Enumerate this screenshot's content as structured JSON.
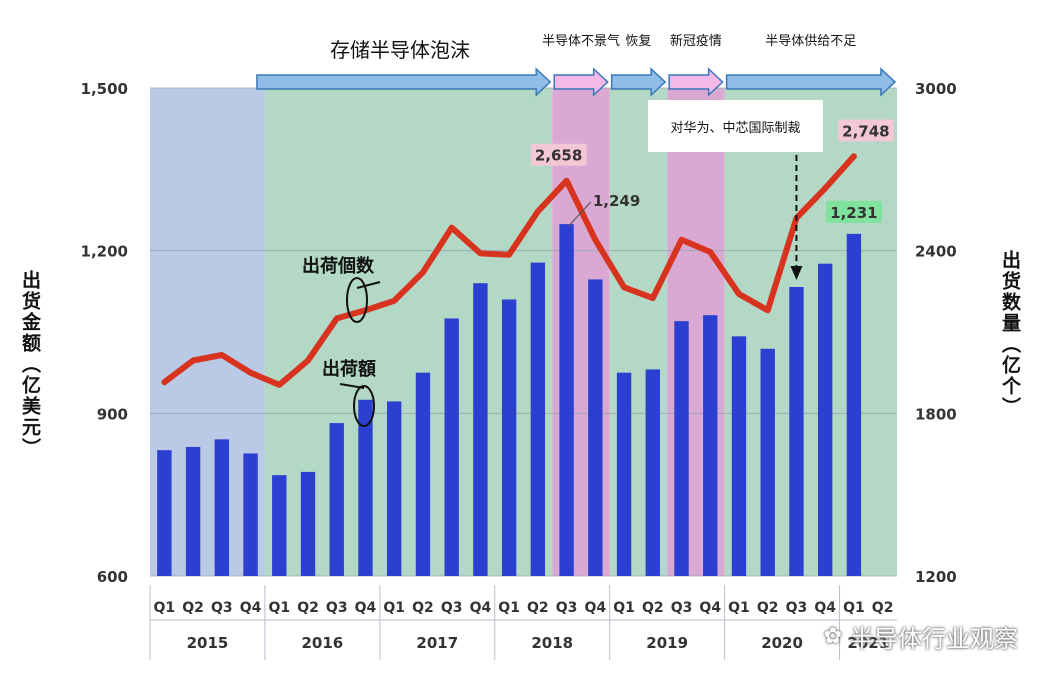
{
  "chart_data": {
    "type": "bar",
    "title": "存储半导体泡沫",
    "ylabel_left": "出货金额（亿美元）",
    "ylabel_right": "出货数量（亿个）",
    "left_axis": {
      "ylim": [
        600,
        1500
      ],
      "ticks": [
        "600",
        "900",
        "1,200",
        "1,500"
      ],
      "tick_values": [
        600,
        900,
        1200,
        1500
      ]
    },
    "right_axis": {
      "ylim": [
        1200,
        3000
      ],
      "ticks": [
        "1200",
        "1800",
        "2400",
        "3000"
      ],
      "tick_values": [
        1200,
        1800,
        2400,
        3000
      ]
    },
    "quarters": [
      "Q1",
      "Q2",
      "Q3",
      "Q4",
      "Q1",
      "Q2",
      "Q3",
      "Q4",
      "Q1",
      "Q2",
      "Q3",
      "Q4",
      "Q1",
      "Q2",
      "Q3",
      "Q4",
      "Q1",
      "Q2",
      "Q3",
      "Q4",
      "Q1",
      "Q2",
      "Q3",
      "Q4",
      "Q1",
      "Q2"
    ],
    "years": [
      {
        "label": "2015",
        "span": 4
      },
      {
        "label": "2016",
        "span": 4
      },
      {
        "label": "2017",
        "span": 4
      },
      {
        "label": "2018",
        "span": 4
      },
      {
        "label": "2019",
        "span": 4
      },
      {
        "label": "2020",
        "span": 4
      },
      {
        "label": "2021",
        "span": 2
      }
    ],
    "series": [
      {
        "name": "出荷額",
        "type": "bar",
        "axis": "left",
        "color": "#2b3fd0",
        "values": [
          832,
          838,
          852,
          826,
          786,
          792,
          882,
          925,
          922,
          975,
          1075,
          1140,
          1110,
          1178,
          1249,
          1147,
          975,
          981,
          1070,
          1081,
          1042,
          1019,
          1133,
          1176,
          1231,
          null
        ]
      },
      {
        "name": "出荷個数",
        "type": "line",
        "axis": "right",
        "color": "#d8331e",
        "values": [
          1915,
          1995,
          2015,
          1950,
          1905,
          1995,
          2150,
          2180,
          2215,
          2320,
          2485,
          2390,
          2385,
          2545,
          2658,
          2440,
          2265,
          2225,
          2440,
          2395,
          2240,
          2180,
          2520,
          2630,
          2748,
          null
        ]
      }
    ],
    "data_labels": [
      {
        "series": "出荷個数",
        "index": 14,
        "text": "2,658"
      },
      {
        "series": "出荷額",
        "index": 14,
        "text": "1,249"
      },
      {
        "series": "出荷個数",
        "index": 24,
        "text": "2,748"
      },
      {
        "series": "出荷額",
        "index": 24,
        "text": "1,231"
      }
    ],
    "periods": [
      {
        "label": "存储半导体泡沫",
        "start": 4,
        "end": 14,
        "kind": "green"
      },
      {
        "label": "半导体不景气",
        "start": 14,
        "end": 16,
        "kind": "pink"
      },
      {
        "label": "恢复",
        "start": 16,
        "end": 18,
        "kind": "green"
      },
      {
        "label": "新冠疫情",
        "start": 18,
        "end": 20,
        "kind": "pink"
      },
      {
        "label": "半导体供给不足",
        "start": 20,
        "end": 26,
        "kind": "green"
      }
    ],
    "annotations": {
      "sanction": "对华为、中芯国际制裁",
      "line_series_label": "出荷個数",
      "bar_series_label": "出荷額"
    },
    "colors": {
      "band_blue": "#b9c9e6",
      "band_green": "#b3d9c6",
      "band_pink": "#d9a9d3",
      "arrow_blue": "#8fbde8",
      "arrow_pink": "#f5b8e8",
      "arrow_edge": "#3a78b8",
      "label_pink_bg": "#f3c7d6",
      "label_green_bg": "#7fe39d"
    }
  },
  "watermark": {
    "text": "半导体行业观察",
    "icon": "wechat-icon"
  }
}
